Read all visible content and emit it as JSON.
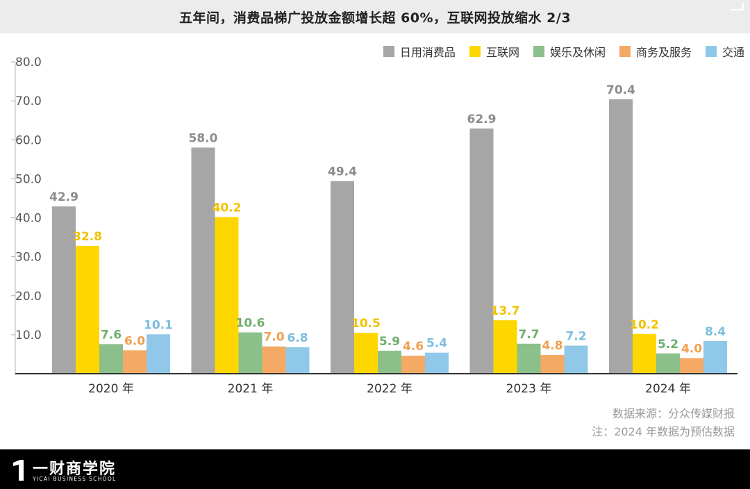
{
  "chart_data": {
    "type": "bar",
    "title": "五年间，消费品梯广投放金额增长超 60%，互联网投放缩水 2/3",
    "categories": [
      "2020 年",
      "2021 年",
      "2022 年",
      "2023 年",
      "2024 年"
    ],
    "series": [
      {
        "name": "日用消费品",
        "color": "#a6a6a6",
        "label_color": "#8c8c8c",
        "values": [
          42.9,
          58.0,
          49.4,
          62.9,
          70.4
        ]
      },
      {
        "name": "互联网",
        "color": "#ffd700",
        "label_color": "#f2c200",
        "values": [
          32.8,
          40.2,
          10.5,
          13.7,
          10.2
        ]
      },
      {
        "name": "娱乐及休闲",
        "color": "#8cc08a",
        "label_color": "#6fae6d",
        "values": [
          7.6,
          10.6,
          5.9,
          7.7,
          5.2
        ]
      },
      {
        "name": "商务及服务",
        "color": "#f4a964",
        "label_color": "#f0a050",
        "values": [
          6.0,
          7.0,
          4.6,
          4.8,
          4.0
        ]
      },
      {
        "name": "交通",
        "color": "#8fc8e8",
        "label_color": "#7dbde0",
        "values": [
          10.1,
          6.8,
          5.4,
          7.2,
          8.4
        ]
      }
    ],
    "data_labels": [
      [
        "42.9",
        "32.8",
        "7.6",
        "6.0",
        "10.1"
      ],
      [
        "58.0",
        "40.2",
        "10.6",
        "7.0",
        "6.8"
      ],
      [
        "49.4",
        "10.5",
        "5.9",
        "4.6",
        "5.4"
      ],
      [
        "62.9",
        "13.7",
        "7.7",
        "4.8",
        "7.2"
      ],
      [
        "70.4",
        "10.2",
        "5.2",
        "4.0",
        "8.4"
      ]
    ],
    "yticks": [
      10,
      20,
      30,
      40,
      50,
      60,
      70,
      80
    ],
    "ytick_labels": [
      "10.0",
      "20.0",
      "30.0",
      "40.0",
      "50.0",
      "60.0",
      "70.0",
      "80.0"
    ],
    "ylim": [
      0,
      80
    ],
    "legend_position": "top-right"
  },
  "notes": {
    "source": "数据来源：分众传媒财报",
    "remark": "注：2024 年数据为预估数据"
  },
  "brand": {
    "name": "一财商学院",
    "sub": "YICAI BUSINESS SCHOOL"
  }
}
